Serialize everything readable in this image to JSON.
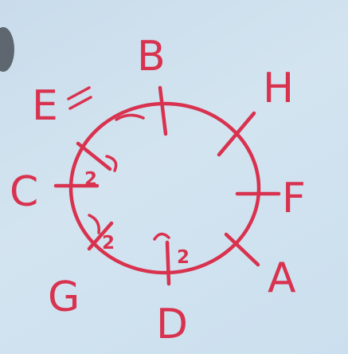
{
  "diagram": {
    "labels": {
      "b": "B",
      "h": "H",
      "e": "E",
      "c": "C",
      "f": "F",
      "g": "G",
      "a": "A",
      "d": "D"
    },
    "inner_marks": {
      "near_c": "2",
      "near_g": "2",
      "near_d": "2"
    },
    "ink_color": "#d8324f"
  }
}
